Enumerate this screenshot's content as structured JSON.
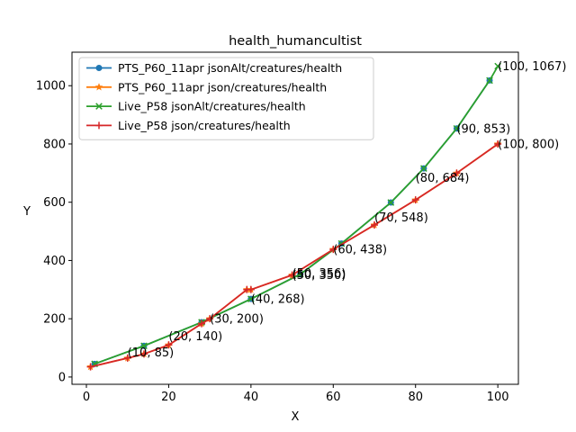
{
  "chart_data": {
    "type": "line",
    "title": "health_humancultist",
    "xlabel": "X",
    "ylabel": "Y",
    "xlim": [
      -3.5,
      105
    ],
    "ylim": [
      -25,
      1115
    ],
    "xticks": [
      0,
      20,
      40,
      60,
      80,
      100
    ],
    "yticks": [
      0,
      200,
      400,
      600,
      800,
      1000
    ],
    "legend_position": "top-left",
    "series": [
      {
        "name": "PTS_P60_11apr jsonAlt/creatures/health",
        "color": "#1f77b4",
        "marker": "circle",
        "x": [
          2,
          14,
          28,
          40,
          52,
          62,
          74,
          82,
          90,
          98
        ],
        "y": [
          45,
          107,
          188,
          268,
          353,
          458,
          599,
          716,
          853,
          1018
        ]
      },
      {
        "name": "PTS_P60_11apr json/creatures/health",
        "color": "#ff7f0e",
        "marker": "star",
        "x": [
          1,
          10,
          14,
          20,
          28,
          30,
          39,
          40,
          50,
          60,
          70,
          80,
          90,
          100
        ],
        "y": [
          35,
          65,
          79,
          110,
          183,
          200,
          300,
          300,
          350,
          438,
          522,
          608,
          700,
          800
        ]
      },
      {
        "name": "Live_P58 jsonAlt/creatures/health",
        "color": "#2ca02c",
        "marker": "x",
        "x": [
          2,
          14,
          28,
          40,
          52,
          62,
          74,
          82,
          90,
          98,
          100
        ],
        "y": [
          45,
          107,
          188,
          268,
          353,
          458,
          599,
          716,
          853,
          1018,
          1067
        ]
      },
      {
        "name": "Live_P58 json/creatures/health",
        "color": "#d62728",
        "marker": "plus",
        "x": [
          1,
          10,
          14,
          20,
          28,
          30,
          39,
          40,
          50,
          60,
          70,
          80,
          90,
          100
        ],
        "y": [
          35,
          65,
          79,
          110,
          183,
          200,
          300,
          300,
          350,
          438,
          522,
          608,
          700,
          800
        ]
      }
    ],
    "annotations": [
      {
        "text": "(10, 85)",
        "x": 10,
        "y": 85
      },
      {
        "text": "(20, 140)",
        "x": 20,
        "y": 140
      },
      {
        "text": "(30, 200)",
        "x": 30,
        "y": 200
      },
      {
        "text": "(40, 268)",
        "x": 40,
        "y": 268
      },
      {
        "text": "(50, 350)",
        "x": 50,
        "y": 350
      },
      {
        "text": "(50, 356)",
        "x": 50,
        "y": 356
      },
      {
        "text": "(60, 438)",
        "x": 60,
        "y": 438
      },
      {
        "text": "(70, 548)",
        "x": 70,
        "y": 548
      },
      {
        "text": "(80, 684)",
        "x": 80,
        "y": 684
      },
      {
        "text": "(90, 853)",
        "x": 90,
        "y": 853
      },
      {
        "text": "(100, 1067)",
        "x": 100,
        "y": 1067
      },
      {
        "text": "(100, 800)",
        "x": 100,
        "y": 800
      }
    ]
  }
}
